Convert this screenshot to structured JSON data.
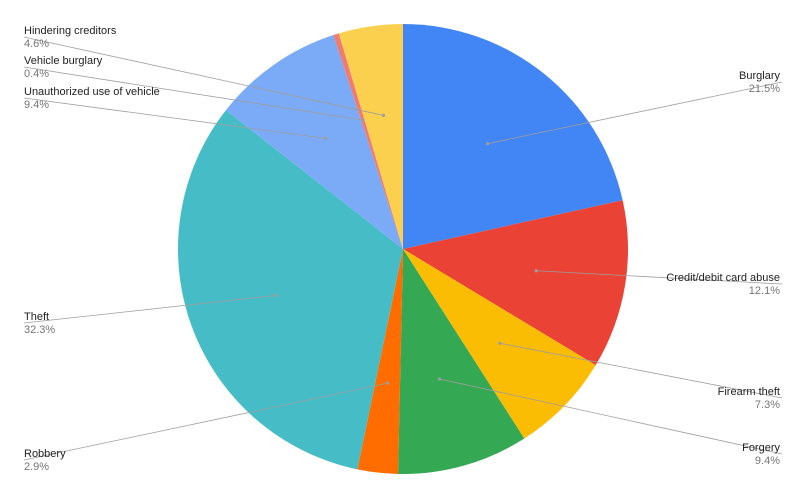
{
  "chart_data": {
    "type": "pie",
    "title": "",
    "start_angle_deg": 0,
    "direction": "clockwise",
    "slices": [
      {
        "label": "Burglary",
        "value": 21.5,
        "display": "21.5%",
        "color": "#4285f4"
      },
      {
        "label": "Credit/debit card abuse",
        "value": 12.1,
        "display": "12.1%",
        "color": "#ea4335"
      },
      {
        "label": "Firearm theft",
        "value": 7.3,
        "display": "7.3%",
        "color": "#fbbc04"
      },
      {
        "label": "Forgery",
        "value": 9.4,
        "display": "9.4%",
        "color": "#34a853"
      },
      {
        "label": "Robbery",
        "value": 2.9,
        "display": "2.9%",
        "color": "#ff6d01"
      },
      {
        "label": "Theft",
        "value": 32.3,
        "display": "32.3%",
        "color": "#46bdc6"
      },
      {
        "label": "Unauthorized use of vehicle",
        "value": 9.4,
        "display": "9.4%",
        "color": "#7baaf7"
      },
      {
        "label": "Vehicle burglary",
        "value": 0.4,
        "display": "0.4%",
        "color": "#f07b72"
      },
      {
        "label": "Hindering creditors",
        "value": 4.6,
        "display": "4.6%",
        "color": "#fcd04f"
      }
    ],
    "legend": "none"
  }
}
